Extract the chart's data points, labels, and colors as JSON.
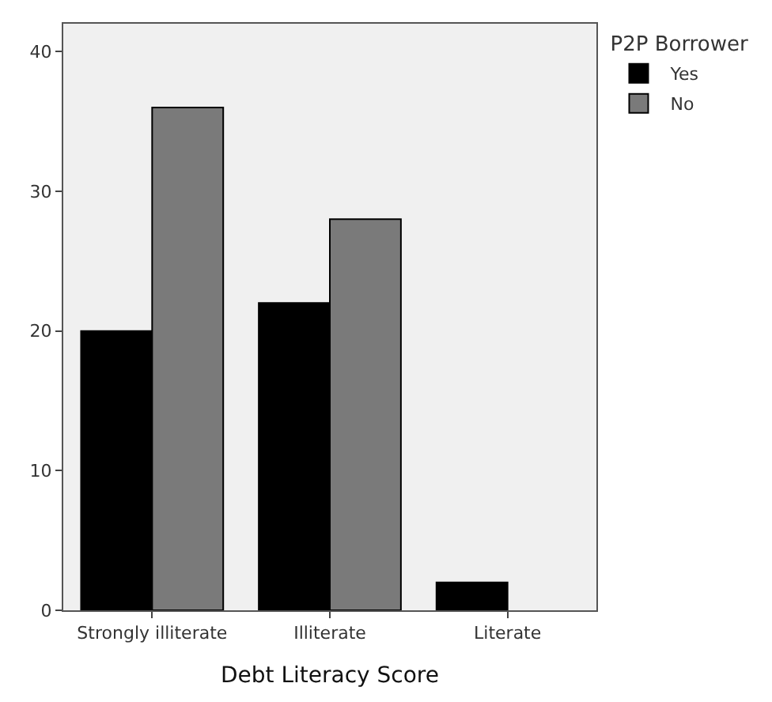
{
  "chart_data": {
    "type": "bar",
    "xlabel": "Debt Literacy Score",
    "legend_title": "P2P Borrower",
    "categories": [
      "Strongly illiterate",
      "Illiterate",
      "Literate"
    ],
    "series": [
      {
        "name": "Yes",
        "color": "#000000",
        "values": [
          20,
          22,
          2
        ]
      },
      {
        "name": "No",
        "color": "#7a7a7a",
        "values": [
          36,
          28,
          null
        ]
      }
    ],
    "ylim": [
      0,
      42
    ],
    "yticks": [
      0,
      10,
      20,
      30,
      40
    ],
    "grid": false,
    "legend": "top right"
  }
}
